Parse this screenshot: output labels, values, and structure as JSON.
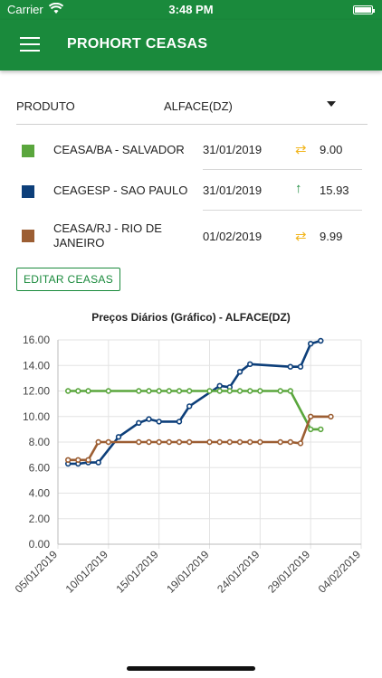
{
  "status_bar": {
    "carrier": "Carrier",
    "time": "3:48 PM"
  },
  "app_bar": {
    "title": "PROHORT CEASAS",
    "menu_icon": "hamburger-icon"
  },
  "product": {
    "label": "PRODUTO",
    "value": "ALFACE(DZ)"
  },
  "ceasas": [
    {
      "name": "CEASA/BA - SALVADOR",
      "date": "31/01/2019",
      "trend": "stable",
      "trend_symbol": "⇄",
      "trend_color": "#f2b61f",
      "price": "9.00",
      "color": "#5aa63d"
    },
    {
      "name": "CEAGESP - SAO PAULO",
      "date": "31/01/2019",
      "trend": "up",
      "trend_symbol": "↑",
      "trend_color": "#1a8a3c",
      "price": "15.93",
      "color": "#0d3f7a"
    },
    {
      "name": "CEASA/RJ - RIO DE JANEIRO",
      "date": "01/02/2019",
      "trend": "stable",
      "trend_symbol": "⇄",
      "trend_color": "#f2b61f",
      "price": "9.99",
      "color": "#9c5e33"
    }
  ],
  "edit_button": "EDITAR CEASAS",
  "chart_data": {
    "type": "line",
    "title": "Preços Diários (Gráfico) - ALFACE(DZ)",
    "x_ticks": [
      "05/01/2019",
      "10/01/2019",
      "15/01/2019",
      "19/01/2019",
      "24/01/2019",
      "29/01/2019",
      "04/02/2019"
    ],
    "y_ticks": [
      "0.00",
      "2.00",
      "4.00",
      "6.00",
      "8.00",
      "10.00",
      "12.00",
      "14.00",
      "16.00"
    ],
    "ylim": [
      0,
      16
    ],
    "x_range": [
      "2019-01-05",
      "2019-02-04"
    ],
    "grid": true,
    "series": [
      {
        "color": "#0d3f7a",
        "points": [
          [
            "2019-01-06",
            6.3
          ],
          [
            "2019-01-07",
            6.3
          ],
          [
            "2019-01-08",
            6.4
          ],
          [
            "2019-01-09",
            6.4
          ],
          [
            "2019-01-11",
            8.4
          ],
          [
            "2019-01-13",
            9.5
          ],
          [
            "2019-01-14",
            9.8
          ],
          [
            "2019-01-15",
            9.6
          ],
          [
            "2019-01-17",
            9.6
          ],
          [
            "2019-01-18",
            10.8
          ],
          [
            "2019-01-21",
            12.4
          ],
          [
            "2019-01-22",
            12.3
          ],
          [
            "2019-01-23",
            13.5
          ],
          [
            "2019-01-24",
            14.1
          ],
          [
            "2019-01-28",
            13.9
          ],
          [
            "2019-01-29",
            13.9
          ],
          [
            "2019-01-30",
            15.7
          ],
          [
            "2019-01-31",
            15.93
          ]
        ]
      },
      {
        "color": "#5aa63d",
        "points": [
          [
            "2019-01-06",
            12.0
          ],
          [
            "2019-01-07",
            12.0
          ],
          [
            "2019-01-08",
            12.0
          ],
          [
            "2019-01-10",
            12.0
          ],
          [
            "2019-01-13",
            12.0
          ],
          [
            "2019-01-14",
            12.0
          ],
          [
            "2019-01-15",
            12.0
          ],
          [
            "2019-01-16",
            12.0
          ],
          [
            "2019-01-17",
            12.0
          ],
          [
            "2019-01-18",
            12.0
          ],
          [
            "2019-01-20",
            12.0
          ],
          [
            "2019-01-21",
            12.0
          ],
          [
            "2019-01-22",
            12.0
          ],
          [
            "2019-01-23",
            12.0
          ],
          [
            "2019-01-24",
            12.0
          ],
          [
            "2019-01-25",
            12.0
          ],
          [
            "2019-01-27",
            12.0
          ],
          [
            "2019-01-28",
            12.0
          ],
          [
            "2019-01-30",
            9.0
          ],
          [
            "2019-01-31",
            9.0
          ]
        ]
      },
      {
        "color": "#9c5e33",
        "points": [
          [
            "2019-01-06",
            6.6
          ],
          [
            "2019-01-07",
            6.6
          ],
          [
            "2019-01-08",
            6.6
          ],
          [
            "2019-01-09",
            8.0
          ],
          [
            "2019-01-10",
            8.0
          ],
          [
            "2019-01-13",
            8.0
          ],
          [
            "2019-01-14",
            8.0
          ],
          [
            "2019-01-15",
            8.0
          ],
          [
            "2019-01-16",
            8.0
          ],
          [
            "2019-01-17",
            8.0
          ],
          [
            "2019-01-18",
            8.0
          ],
          [
            "2019-01-20",
            8.0
          ],
          [
            "2019-01-21",
            8.0
          ],
          [
            "2019-01-22",
            8.0
          ],
          [
            "2019-01-23",
            8.0
          ],
          [
            "2019-01-24",
            8.0
          ],
          [
            "2019-01-25",
            8.0
          ],
          [
            "2019-01-27",
            8.0
          ],
          [
            "2019-01-28",
            8.0
          ],
          [
            "2019-01-29",
            7.9
          ],
          [
            "2019-01-30",
            10.0
          ],
          [
            "2019-02-01",
            9.99
          ]
        ]
      }
    ]
  }
}
